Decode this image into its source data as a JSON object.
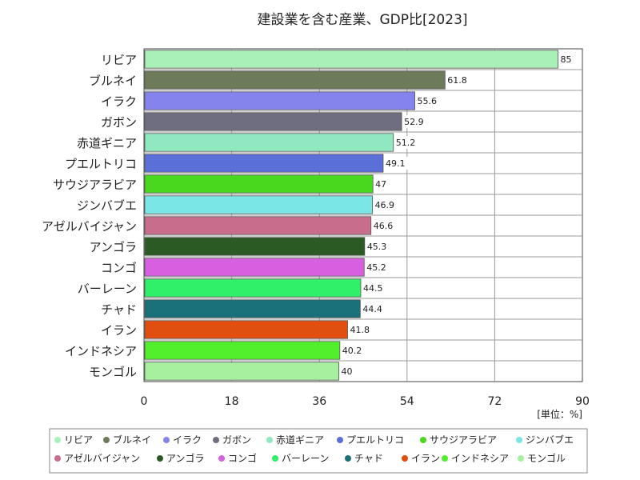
{
  "chart_data": {
    "type": "bar",
    "orientation": "horizontal",
    "title": "建設業を含む産業、GDP比[2023]",
    "unit_label": "[単位：%]",
    "categories": [
      "リビア",
      "ブルネイ",
      "イラク",
      "ガボン",
      "赤道ギニア",
      "プエルトリコ",
      "サウジアラビア",
      "ジンバブエ",
      "アゼルバイジャン",
      "アンゴラ",
      "コンゴ",
      "バーレーン",
      "チャド",
      "イラン",
      "インドネシア",
      "モンゴル"
    ],
    "values": [
      85,
      61.8,
      55.6,
      52.9,
      51.2,
      49.1,
      47,
      46.9,
      46.6,
      45.3,
      45.2,
      44.5,
      44.4,
      41.8,
      40.2,
      40
    ],
    "value_labels": [
      "85",
      "61.8",
      "55.6",
      "52.9",
      "51.2",
      "49.1",
      "47",
      "46.9",
      "46.6",
      "45.3",
      "45.2",
      "44.5",
      "44.4",
      "41.8",
      "40.2",
      "40"
    ],
    "colors": [
      "#a8f0b8",
      "#6e7b5a",
      "#8484ec",
      "#6e6e80",
      "#90e8c0",
      "#5a6fd8",
      "#4ad81e",
      "#7ae6e6",
      "#c86e8c",
      "#2c5a24",
      "#d860e0",
      "#30f06a",
      "#1a7078",
      "#e04e10",
      "#52f02c",
      "#a6f0a0"
    ],
    "xlim": [
      0,
      90
    ],
    "xticks": [
      "0",
      "18",
      "36",
      "54",
      "72",
      "90"
    ],
    "grid": true,
    "legend_position": "bottom"
  }
}
